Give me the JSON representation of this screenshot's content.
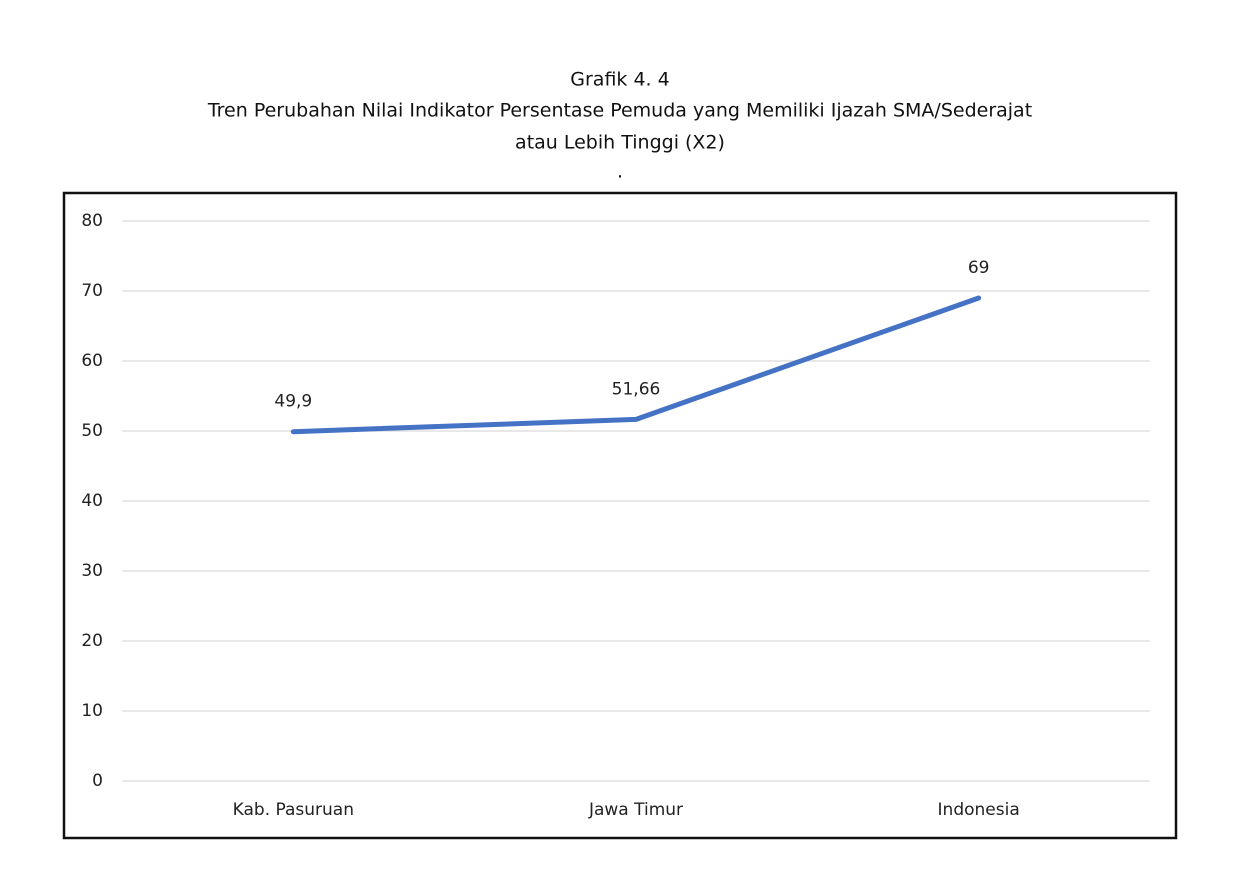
{
  "chart_data": {
    "type": "line",
    "title": [
      "Grafik 4. 4",
      "Tren Perubahan Nilai Indikator Persentase Pemuda yang Memiliki Ijazah SMA/Sederajat",
      "atau Lebih Tinggi (X2)"
    ],
    "note": ".",
    "categories": [
      "Kab. Pasuruan",
      "Jawa Timur",
      "Indonesia"
    ],
    "values": [
      49.9,
      51.66,
      69
    ],
    "value_labels": [
      "49,9",
      "51,66",
      "69"
    ],
    "color": "#4472c4",
    "ylim": [
      0,
      80
    ],
    "yticks": [
      0,
      10,
      20,
      30,
      40,
      50,
      60,
      70,
      80
    ],
    "grid": true
  }
}
